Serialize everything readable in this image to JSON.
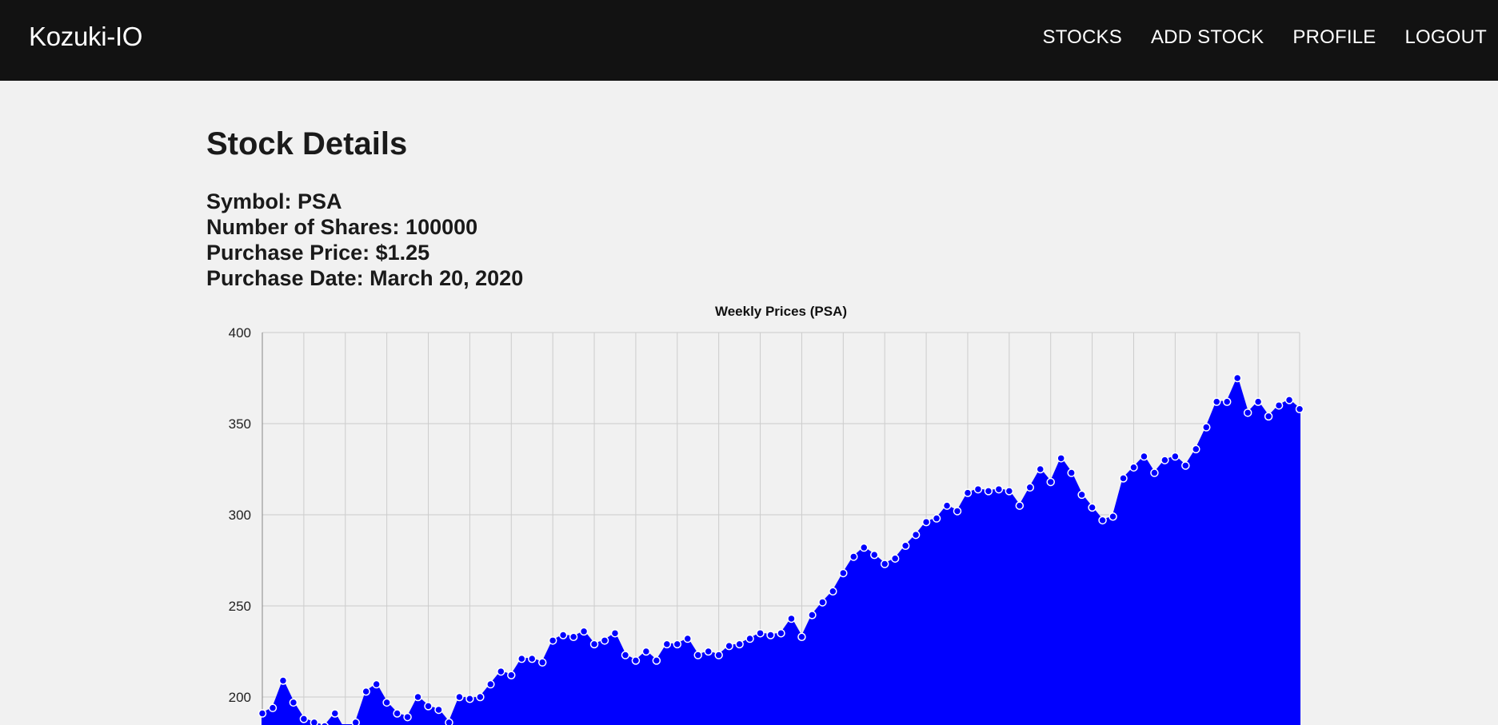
{
  "nav": {
    "brand": "Kozuki-IO",
    "links": [
      "STOCKS",
      "ADD STOCK",
      "PROFILE",
      "LOGOUT"
    ]
  },
  "page": {
    "title": "Stock Details",
    "details": [
      "Symbol: PSA",
      "Number of Shares: 100000",
      "Purchase Price: $1.25",
      "Purchase Date: March 20, 2020"
    ]
  },
  "colors": {
    "navbar": "#121212",
    "background": "#f1f1f1",
    "series": "#0000ff"
  },
  "chart_data": {
    "type": "area",
    "title": "Weekly Prices (PSA)",
    "xlabel": "",
    "ylabel": "",
    "ylim": [
      0,
      400
    ],
    "yticks": [
      200,
      250,
      300,
      350,
      400
    ],
    "grid": true,
    "legend": "none",
    "series": [
      {
        "values": [
          191,
          194,
          209,
          197,
          188,
          186,
          184,
          191,
          181,
          186,
          203,
          207,
          197,
          191,
          189,
          200,
          195,
          193,
          186,
          200,
          199,
          200,
          207,
          214,
          212,
          221,
          221,
          219,
          231,
          234,
          233,
          236,
          229,
          231,
          235,
          223,
          220,
          225,
          220,
          229,
          229,
          232,
          223,
          225,
          223,
          228,
          229,
          232,
          235,
          234,
          235,
          243,
          233,
          245,
          252,
          258,
          268,
          277,
          282,
          278,
          273,
          276,
          283,
          289,
          296,
          298,
          305,
          302,
          312,
          314,
          313,
          314,
          313,
          305,
          315,
          325,
          318,
          331,
          323,
          311,
          304,
          297,
          299,
          320,
          326,
          332,
          323,
          330,
          332,
          327,
          336,
          348,
          362,
          362,
          375,
          356,
          362,
          354,
          360,
          363,
          358
        ]
      }
    ]
  }
}
